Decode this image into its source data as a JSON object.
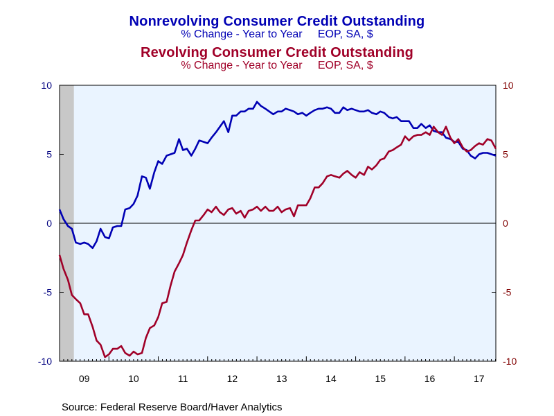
{
  "titles": {
    "line1": "Nonrevolving Consumer Credit Outstanding",
    "line2": "% Change - Year to Year     EOP, SA, $",
    "line3": "Revolving Consumer Credit Outstanding",
    "line4": "% Change - Year to Year     EOP, SA, $"
  },
  "source": "Source:  Federal Reserve Board/Haver Analytics",
  "colors": {
    "nonrevolving": "#0000b4",
    "revolving": "#a00028",
    "left_axis_text": "#000080",
    "right_axis_text": "#800000",
    "plot_bg": "#eaf4ff",
    "recession": "#c8c8c8"
  },
  "chart_data": {
    "type": "line",
    "x_unit": "year",
    "x_range": [
      2009.0,
      2017.84
    ],
    "ylim": [
      -10,
      10
    ],
    "grid": false,
    "zero_line": true,
    "left_yticks": [
      10,
      5,
      0,
      -5,
      -10
    ],
    "right_yticks": [
      10,
      5,
      0,
      -5,
      -10
    ],
    "xticks": [
      {
        "label": "09",
        "at": 2009.5
      },
      {
        "label": "10",
        "at": 2010.5
      },
      {
        "label": "11",
        "at": 2011.5
      },
      {
        "label": "12",
        "at": 2012.5
      },
      {
        "label": "13",
        "at": 2013.5
      },
      {
        "label": "14",
        "at": 2014.5
      },
      {
        "label": "15",
        "at": 2015.5
      },
      {
        "label": "16",
        "at": 2016.5
      },
      {
        "label": "17",
        "at": 2017.5
      }
    ],
    "recession_shading": [
      2009.0,
      2009.29
    ],
    "series": [
      {
        "name": "Nonrevolving Consumer Credit Outstanding",
        "axis": "left",
        "color": "#0000b4",
        "points": [
          [
            2009.0,
            1.0
          ],
          [
            2009.08,
            0.3
          ],
          [
            2009.17,
            -0.2
          ],
          [
            2009.25,
            -0.4
          ],
          [
            2009.33,
            -1.4
          ],
          [
            2009.42,
            -1.5
          ],
          [
            2009.5,
            -1.4
          ],
          [
            2009.58,
            -1.5
          ],
          [
            2009.67,
            -1.8
          ],
          [
            2009.75,
            -1.3
          ],
          [
            2009.83,
            -0.4
          ],
          [
            2009.92,
            -1.0
          ],
          [
            2010.0,
            -1.1
          ],
          [
            2010.08,
            -0.3
          ],
          [
            2010.17,
            -0.2
          ],
          [
            2010.25,
            -0.2
          ],
          [
            2010.33,
            1.0
          ],
          [
            2010.42,
            1.1
          ],
          [
            2010.5,
            1.4
          ],
          [
            2010.58,
            2.0
          ],
          [
            2010.67,
            3.4
          ],
          [
            2010.75,
            3.3
          ],
          [
            2010.83,
            2.5
          ],
          [
            2010.92,
            3.7
          ],
          [
            2011.0,
            4.5
          ],
          [
            2011.08,
            4.3
          ],
          [
            2011.17,
            4.9
          ],
          [
            2011.25,
            5.0
          ],
          [
            2011.33,
            5.1
          ],
          [
            2011.42,
            6.1
          ],
          [
            2011.5,
            5.3
          ],
          [
            2011.58,
            5.4
          ],
          [
            2011.67,
            4.9
          ],
          [
            2011.75,
            5.4
          ],
          [
            2011.83,
            6.0
          ],
          [
            2011.92,
            5.9
          ],
          [
            2012.0,
            5.8
          ],
          [
            2012.08,
            6.2
          ],
          [
            2012.17,
            6.6
          ],
          [
            2012.25,
            7.0
          ],
          [
            2012.33,
            7.4
          ],
          [
            2012.42,
            6.6
          ],
          [
            2012.5,
            7.8
          ],
          [
            2012.58,
            7.8
          ],
          [
            2012.67,
            8.1
          ],
          [
            2012.75,
            8.1
          ],
          [
            2012.83,
            8.3
          ],
          [
            2012.92,
            8.3
          ],
          [
            2013.0,
            8.8
          ],
          [
            2013.08,
            8.5
          ],
          [
            2013.17,
            8.3
          ],
          [
            2013.25,
            8.1
          ],
          [
            2013.33,
            7.9
          ],
          [
            2013.42,
            8.1
          ],
          [
            2013.5,
            8.1
          ],
          [
            2013.58,
            8.3
          ],
          [
            2013.67,
            8.2
          ],
          [
            2013.75,
            8.1
          ],
          [
            2013.83,
            7.9
          ],
          [
            2013.92,
            8.0
          ],
          [
            2014.0,
            7.8
          ],
          [
            2014.08,
            8.0
          ],
          [
            2014.17,
            8.2
          ],
          [
            2014.25,
            8.3
          ],
          [
            2014.33,
            8.3
          ],
          [
            2014.42,
            8.4
          ],
          [
            2014.5,
            8.3
          ],
          [
            2014.58,
            8.0
          ],
          [
            2014.67,
            8.0
          ],
          [
            2014.75,
            8.4
          ],
          [
            2014.83,
            8.2
          ],
          [
            2014.92,
            8.3
          ],
          [
            2015.0,
            8.2
          ],
          [
            2015.08,
            8.1
          ],
          [
            2015.17,
            8.1
          ],
          [
            2015.25,
            8.2
          ],
          [
            2015.33,
            8.0
          ],
          [
            2015.42,
            7.9
          ],
          [
            2015.5,
            8.1
          ],
          [
            2015.58,
            8.0
          ],
          [
            2015.67,
            7.7
          ],
          [
            2015.75,
            7.6
          ],
          [
            2015.83,
            7.7
          ],
          [
            2015.92,
            7.4
          ],
          [
            2016.0,
            7.4
          ],
          [
            2016.08,
            7.4
          ],
          [
            2016.17,
            6.9
          ],
          [
            2016.25,
            6.9
          ],
          [
            2016.33,
            7.2
          ],
          [
            2016.42,
            6.9
          ],
          [
            2016.5,
            7.1
          ],
          [
            2016.58,
            6.7
          ],
          [
            2016.67,
            6.6
          ],
          [
            2016.75,
            6.6
          ],
          [
            2016.83,
            6.2
          ],
          [
            2016.92,
            6.1
          ],
          [
            2017.0,
            5.9
          ],
          [
            2017.08,
            5.9
          ],
          [
            2017.17,
            5.4
          ],
          [
            2017.25,
            5.3
          ],
          [
            2017.33,
            4.9
          ],
          [
            2017.42,
            4.7
          ],
          [
            2017.5,
            5.0
          ],
          [
            2017.58,
            5.1
          ],
          [
            2017.67,
            5.1
          ],
          [
            2017.75,
            5.0
          ],
          [
            2017.84,
            4.9
          ]
        ]
      },
      {
        "name": "Revolving Consumer Credit Outstanding",
        "axis": "right",
        "color": "#a00028",
        "points": [
          [
            2009.0,
            -2.3
          ],
          [
            2009.08,
            -3.3
          ],
          [
            2009.17,
            -4.1
          ],
          [
            2009.25,
            -5.2
          ],
          [
            2009.33,
            -5.5
          ],
          [
            2009.42,
            -5.8
          ],
          [
            2009.5,
            -6.6
          ],
          [
            2009.58,
            -6.6
          ],
          [
            2009.67,
            -7.5
          ],
          [
            2009.75,
            -8.5
          ],
          [
            2009.83,
            -8.8
          ],
          [
            2009.92,
            -9.7
          ],
          [
            2010.0,
            -9.5
          ],
          [
            2010.08,
            -9.1
          ],
          [
            2010.17,
            -9.1
          ],
          [
            2010.25,
            -8.9
          ],
          [
            2010.33,
            -9.4
          ],
          [
            2010.42,
            -9.6
          ],
          [
            2010.5,
            -9.3
          ],
          [
            2010.58,
            -9.5
          ],
          [
            2010.67,
            -9.4
          ],
          [
            2010.75,
            -8.3
          ],
          [
            2010.83,
            -7.6
          ],
          [
            2010.92,
            -7.4
          ],
          [
            2011.0,
            -6.8
          ],
          [
            2011.08,
            -5.8
          ],
          [
            2011.17,
            -5.7
          ],
          [
            2011.25,
            -4.5
          ],
          [
            2011.33,
            -3.5
          ],
          [
            2011.42,
            -2.9
          ],
          [
            2011.5,
            -2.3
          ],
          [
            2011.58,
            -1.4
          ],
          [
            2011.67,
            -0.5
          ],
          [
            2011.75,
            0.2
          ],
          [
            2011.83,
            0.2
          ],
          [
            2011.92,
            0.6
          ],
          [
            2012.0,
            1.0
          ],
          [
            2012.08,
            0.8
          ],
          [
            2012.17,
            1.2
          ],
          [
            2012.25,
            0.8
          ],
          [
            2012.33,
            0.6
          ],
          [
            2012.42,
            1.0
          ],
          [
            2012.5,
            1.1
          ],
          [
            2012.58,
            0.7
          ],
          [
            2012.67,
            0.9
          ],
          [
            2012.75,
            0.4
          ],
          [
            2012.83,
            0.9
          ],
          [
            2012.92,
            1.0
          ],
          [
            2013.0,
            1.2
          ],
          [
            2013.08,
            0.9
          ],
          [
            2013.17,
            1.2
          ],
          [
            2013.25,
            0.9
          ],
          [
            2013.33,
            0.9
          ],
          [
            2013.42,
            1.2
          ],
          [
            2013.5,
            0.8
          ],
          [
            2013.58,
            1.0
          ],
          [
            2013.67,
            1.1
          ],
          [
            2013.75,
            0.5
          ],
          [
            2013.83,
            1.3
          ],
          [
            2013.92,
            1.3
          ],
          [
            2014.0,
            1.3
          ],
          [
            2014.08,
            1.8
          ],
          [
            2014.17,
            2.6
          ],
          [
            2014.25,
            2.6
          ],
          [
            2014.33,
            2.9
          ],
          [
            2014.42,
            3.4
          ],
          [
            2014.5,
            3.5
          ],
          [
            2014.58,
            3.4
          ],
          [
            2014.67,
            3.3
          ],
          [
            2014.75,
            3.6
          ],
          [
            2014.83,
            3.8
          ],
          [
            2014.92,
            3.5
          ],
          [
            2015.0,
            3.3
          ],
          [
            2015.08,
            3.7
          ],
          [
            2015.17,
            3.5
          ],
          [
            2015.25,
            4.1
          ],
          [
            2015.33,
            3.9
          ],
          [
            2015.42,
            4.2
          ],
          [
            2015.5,
            4.6
          ],
          [
            2015.58,
            4.7
          ],
          [
            2015.67,
            5.2
          ],
          [
            2015.75,
            5.3
          ],
          [
            2015.83,
            5.5
          ],
          [
            2015.92,
            5.7
          ],
          [
            2016.0,
            6.3
          ],
          [
            2016.08,
            6.0
          ],
          [
            2016.17,
            6.3
          ],
          [
            2016.25,
            6.4
          ],
          [
            2016.33,
            6.4
          ],
          [
            2016.42,
            6.6
          ],
          [
            2016.5,
            6.4
          ],
          [
            2016.58,
            7.0
          ],
          [
            2016.67,
            6.6
          ],
          [
            2016.75,
            6.4
          ],
          [
            2016.83,
            7.0
          ],
          [
            2016.92,
            6.2
          ],
          [
            2017.0,
            5.8
          ],
          [
            2017.08,
            6.1
          ],
          [
            2017.17,
            5.5
          ],
          [
            2017.25,
            5.2
          ],
          [
            2017.33,
            5.3
          ],
          [
            2017.42,
            5.6
          ],
          [
            2017.5,
            5.8
          ],
          [
            2017.58,
            5.7
          ],
          [
            2017.67,
            6.1
          ],
          [
            2017.75,
            6.0
          ],
          [
            2017.84,
            5.4
          ]
        ]
      }
    ]
  }
}
